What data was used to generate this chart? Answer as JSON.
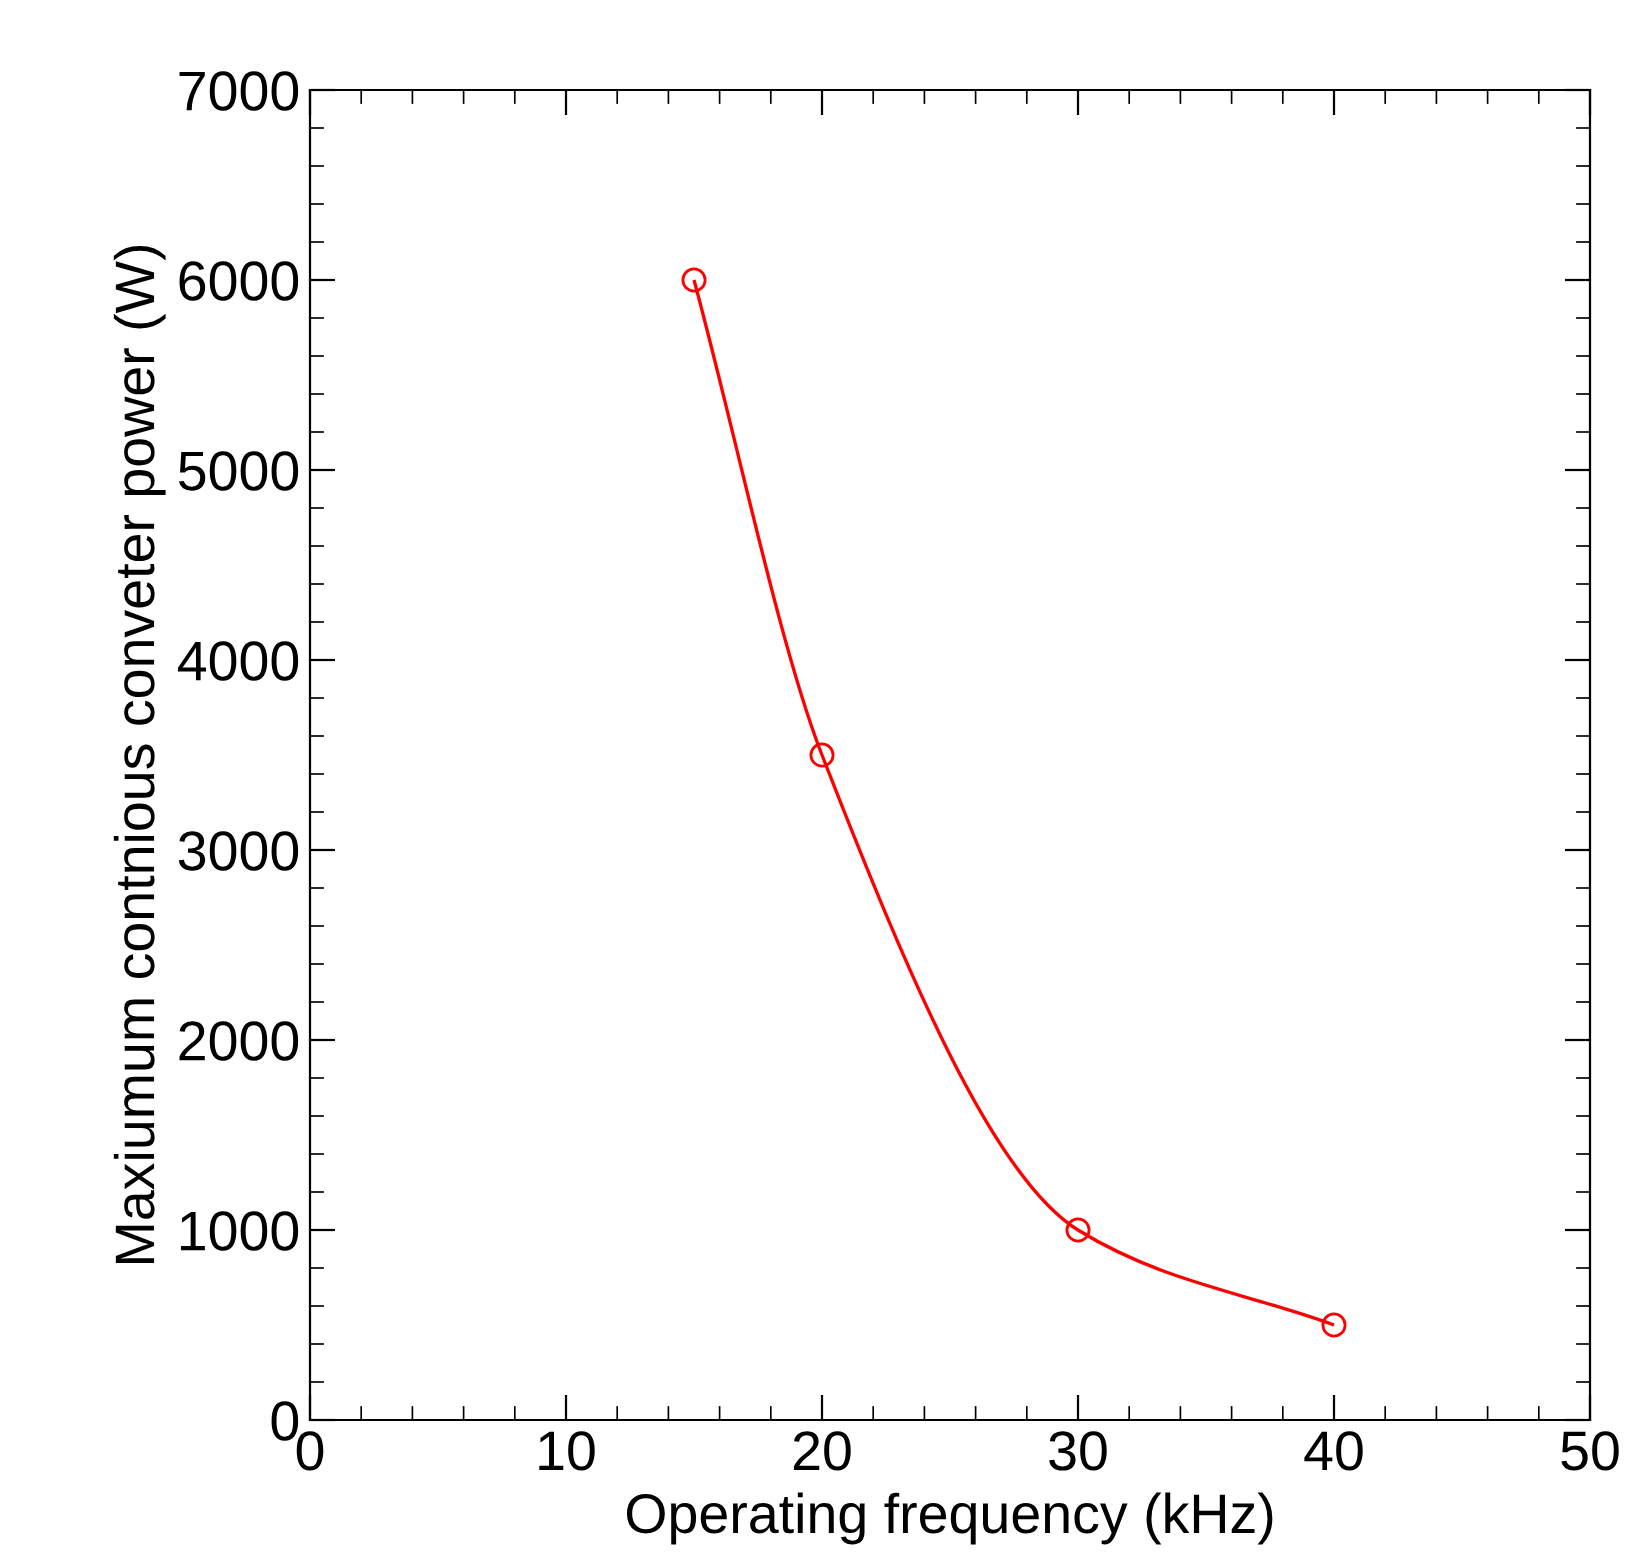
{
  "chart_data": {
    "type": "line",
    "xlabel": "Operating frequency (kHz)",
    "ylabel": "Maxiumum contnious conveter power (W)",
    "x": [
      15,
      20,
      30,
      40
    ],
    "series": [
      {
        "color": "#ff0000",
        "values": [
          6000,
          3500,
          1000,
          500
        ]
      }
    ],
    "xlim": [
      0,
      50
    ],
    "xticks": [
      0,
      10,
      20,
      30,
      40,
      50
    ],
    "ylim": [
      0,
      7000
    ],
    "yticks": [
      0,
      1000,
      2000,
      3000,
      4000,
      5000,
      6000,
      7000
    ],
    "marker": "circle",
    "grid": false,
    "legend": false
  }
}
